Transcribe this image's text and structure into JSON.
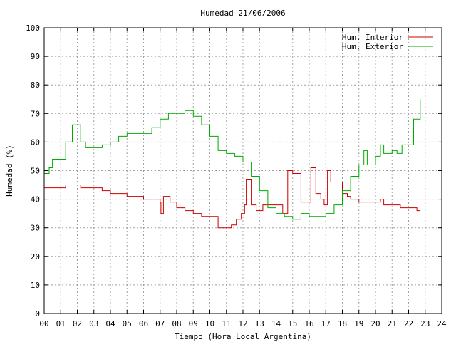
{
  "chart_data": {
    "type": "line",
    "title": "Humedad 21/06/2006",
    "xlabel": "Tiempo (Hora Local Argentina)",
    "ylabel": "Humedad (%)",
    "xlim": [
      0,
      24
    ],
    "ylim": [
      0,
      100
    ],
    "x_ticks": [
      "00",
      "01",
      "02",
      "03",
      "04",
      "05",
      "06",
      "07",
      "08",
      "09",
      "10",
      "11",
      "12",
      "13",
      "14",
      "15",
      "16",
      "17",
      "18",
      "19",
      "20",
      "21",
      "22",
      "23",
      "24"
    ],
    "y_ticks": [
      0,
      10,
      20,
      30,
      40,
      50,
      60,
      70,
      80,
      90,
      100
    ],
    "grid": true,
    "legend_position": "top-right",
    "series": [
      {
        "name": "Hum. Interior",
        "color": "#cc0000",
        "x": [
          0,
          1.0,
          1.3,
          2.2,
          3.0,
          3.5,
          4.0,
          4.5,
          5.0,
          5.5,
          6.0,
          6.5,
          7.0,
          7.05,
          7.2,
          7.3,
          7.6,
          8.0,
          8.5,
          9.0,
          9.5,
          10.0,
          10.5,
          11.0,
          11.3,
          11.6,
          11.9,
          12.1,
          12.2,
          12.5,
          12.8,
          13.0,
          13.2,
          13.5,
          14.0,
          14.3,
          14.4,
          14.7,
          15.0,
          15.5,
          16.0,
          16.1,
          16.4,
          16.7,
          16.9,
          17.1,
          17.3,
          17.5,
          18.0,
          18.3,
          18.5,
          18.8,
          19.0,
          19.5,
          20.0,
          20.3,
          20.5,
          21.0,
          21.5,
          22.0,
          22.5,
          22.7
        ],
        "y": [
          44,
          44,
          45,
          44,
          44,
          43,
          42,
          42,
          41,
          41,
          40,
          40,
          39,
          35,
          41,
          41,
          39,
          37,
          36,
          35,
          34,
          34,
          30,
          30,
          31,
          33,
          35,
          38,
          47,
          38,
          36,
          36,
          38,
          38,
          38,
          38,
          35,
          50,
          49,
          39,
          39,
          51,
          42,
          40,
          38,
          50,
          46,
          46,
          42,
          41,
          40,
          40,
          39,
          39,
          39,
          40,
          38,
          38,
          37,
          37,
          36,
          36
        ]
      },
      {
        "name": "Hum. Exterior",
        "color": "#00aa00",
        "x": [
          0,
          0.3,
          0.5,
          1.0,
          1.3,
          1.7,
          2.0,
          2.2,
          2.5,
          3.0,
          3.5,
          4.0,
          4.5,
          5.0,
          5.5,
          6.0,
          6.5,
          7.0,
          7.5,
          8.0,
          8.5,
          9.0,
          9.5,
          10.0,
          10.5,
          11.0,
          11.5,
          12.0,
          12.5,
          13.0,
          13.5,
          14.0,
          14.5,
          15.0,
          15.5,
          16.0,
          16.5,
          17.0,
          17.5,
          18.0,
          18.5,
          19.0,
          19.3,
          19.5,
          20.0,
          20.3,
          20.5,
          21.0,
          21.3,
          21.6,
          22.0,
          22.3,
          22.7
        ],
        "y": [
          49,
          51,
          54,
          54,
          60,
          66,
          66,
          60,
          58,
          58,
          59,
          60,
          62,
          63,
          63,
          63,
          65,
          68,
          70,
          70,
          71,
          69,
          66,
          62,
          57,
          56,
          55,
          53,
          48,
          43,
          37,
          35,
          34,
          33,
          35,
          34,
          34,
          35,
          38,
          43,
          48,
          52,
          57,
          52,
          55,
          59,
          56,
          57,
          56,
          59,
          59,
          68,
          75
        ]
      }
    ]
  }
}
